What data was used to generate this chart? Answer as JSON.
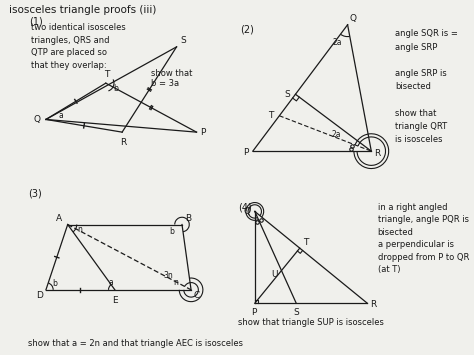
{
  "title": "isosceles triangle proofs (iii)",
  "bg_color": "#f0f0ec",
  "line_color": "#1a1a1a",
  "label1": "(1)",
  "label2": "(2)",
  "label3": "(3)",
  "label4": "(4)",
  "text1": "two identical isosceles\ntriangles, QRS and\nQTP are placed so\nthat they overlap:",
  "text1b": "show that\nb = 3a",
  "text2": "angle SQR is =\nangle SRP\n\nangle SRP is\nbisected\n\nshow that\ntriangle QRT\nis isosceles",
  "text3": "show that a = 2n and that triangle AEC is isosceles",
  "text4": "in a right angled\ntriangle, angle PQR is\nbisected\na perpendicular is\ndropped from P to QR\n(at T)",
  "text4b": "show that triangle SUP is isosceles"
}
